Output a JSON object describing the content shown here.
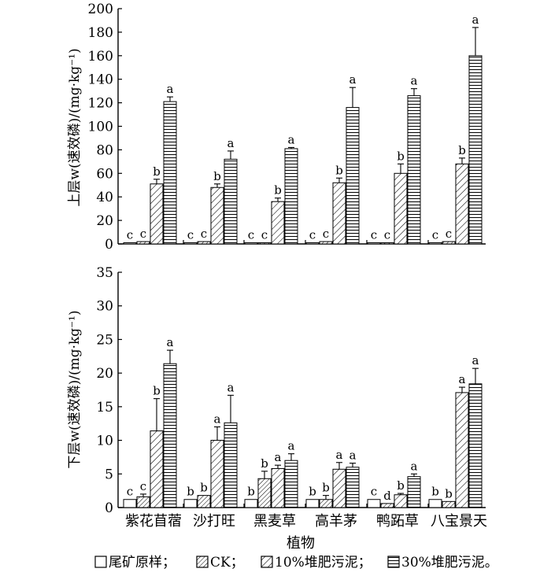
{
  "chart_data": [
    {
      "type": "bar",
      "panel": "top",
      "ylabel": "上层w(速效磷)/(mg·kg⁻¹)",
      "ylim": [
        0,
        200
      ],
      "yticks": [
        0,
        20,
        40,
        60,
        80,
        100,
        120,
        140,
        160,
        180,
        200
      ],
      "categories": [
        "紫花苜蓿",
        "沙打旺",
        "黑麦草",
        "高羊茅",
        "鸭跖草",
        "八宝景天"
      ],
      "series": [
        {
          "name": "尾矿原样",
          "values": [
            1,
            1,
            1,
            1,
            1,
            1
          ],
          "errors": [
            0,
            0,
            0,
            0,
            0,
            0
          ],
          "letters": [
            "c",
            "c",
            "c",
            "c",
            "c",
            "c"
          ]
        },
        {
          "name": "CK",
          "values": [
            2,
            2,
            1,
            2,
            1,
            2
          ],
          "errors": [
            0,
            0,
            0,
            0,
            0,
            0
          ],
          "letters": [
            "c",
            "c",
            "c",
            "c",
            "c",
            "c"
          ]
        },
        {
          "name": "10%堆肥污泥",
          "values": [
            51,
            48,
            36,
            52,
            60,
            68
          ],
          "errors": [
            4,
            3,
            3,
            4,
            8,
            5
          ],
          "letters": [
            "b",
            "b",
            "b",
            "b",
            "b",
            "b"
          ]
        },
        {
          "name": "30%堆肥污泥",
          "values": [
            121,
            72,
            81,
            116,
            126,
            160
          ],
          "errors": [
            4,
            7,
            1,
            17,
            6,
            24
          ],
          "letters": [
            "a",
            "a",
            "a",
            "a",
            "a",
            "a"
          ]
        }
      ]
    },
    {
      "type": "bar",
      "panel": "bottom",
      "ylabel": "下层w(速效磷)/(mg·kg⁻¹)",
      "xlabel": "植物",
      "ylim": [
        0,
        35
      ],
      "yticks": [
        0,
        5,
        10,
        15,
        20,
        25,
        30,
        35
      ],
      "categories": [
        "紫花苜蓿",
        "沙打旺",
        "黑麦草",
        "高羊茅",
        "鸭跖草",
        "八宝景天"
      ],
      "series": [
        {
          "name": "尾矿原样",
          "values": [
            1.2,
            1.2,
            1.2,
            1.2,
            1.2,
            1.2
          ],
          "errors": [
            0,
            0,
            0,
            0,
            0,
            0
          ],
          "letters": [
            "c",
            "b",
            "b",
            "b",
            "c",
            "b"
          ]
        },
        {
          "name": "CK",
          "values": [
            1.6,
            1.8,
            4.3,
            1.2,
            0.6,
            0.9
          ],
          "errors": [
            0.4,
            0,
            1.1,
            0.6,
            0,
            0
          ],
          "letters": [
            "c",
            "b",
            "b",
            "b",
            "d",
            "b"
          ]
        },
        {
          "name": "10%堆肥污泥",
          "values": [
            11.4,
            10.0,
            5.8,
            5.7,
            1.9,
            17.1
          ],
          "errors": [
            4.8,
            2.0,
            0.5,
            1.0,
            0.2,
            0.8
          ],
          "letters": [
            "b",
            "a",
            "a",
            "a",
            "b",
            "a"
          ]
        },
        {
          "name": "30%堆肥污泥",
          "values": [
            21.4,
            12.6,
            7.0,
            6.0,
            4.6,
            18.4
          ],
          "errors": [
            2.0,
            4.1,
            1.0,
            0.6,
            0.4,
            2.3
          ],
          "letters": [
            "a",
            "a",
            "a",
            "a",
            "a",
            "a"
          ]
        }
      ]
    }
  ],
  "legend": {
    "items": [
      {
        "label": "尾矿原样",
        "sep": "；",
        "pattern": "solid"
      },
      {
        "label": "CK",
        "sep": "；",
        "pattern": "diag-dense"
      },
      {
        "label": "10%堆肥污泥",
        "sep": "；",
        "pattern": "diag"
      },
      {
        "label": "30%堆肥污泥",
        "sep": "。",
        "pattern": "horizontal"
      }
    ]
  }
}
